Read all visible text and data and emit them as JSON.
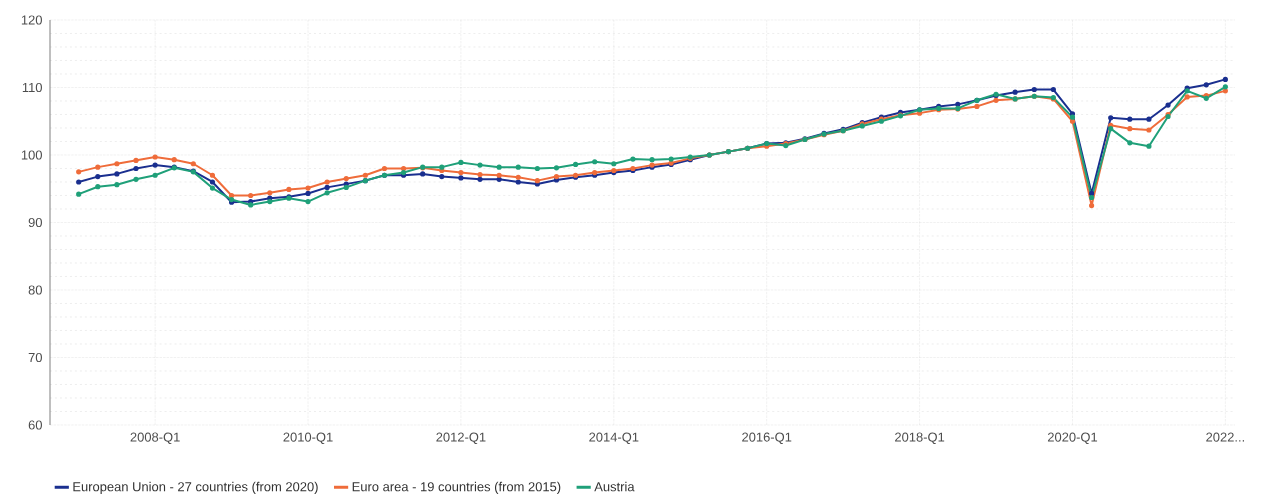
{
  "chart_data": {
    "type": "line",
    "categories": [
      null,
      null,
      null,
      null,
      "2008-Q1",
      null,
      null,
      null,
      null,
      null,
      null,
      null,
      "2010-Q1",
      null,
      null,
      null,
      null,
      null,
      null,
      null,
      "2012-Q1",
      null,
      null,
      null,
      null,
      null,
      null,
      null,
      "2014-Q1",
      null,
      null,
      null,
      null,
      null,
      null,
      null,
      "2016-Q1",
      null,
      null,
      null,
      null,
      null,
      null,
      null,
      "2018-Q1",
      null,
      null,
      null,
      null,
      null,
      null,
      null,
      "2020-Q1",
      null,
      null,
      null,
      null,
      null,
      null,
      null,
      "2022..."
    ],
    "series": [
      {
        "name": "European Union - 27 countries (from 2020)",
        "color": "#1a2f8f",
        "values": [
          96.0,
          96.8,
          97.2,
          98.0,
          98.5,
          98.2,
          97.6,
          96.0,
          93.0,
          93.1,
          93.6,
          93.8,
          94.3,
          95.2,
          95.7,
          96.2,
          97.0,
          97.0,
          97.2,
          96.8,
          96.6,
          96.4,
          96.4,
          96.0,
          95.7,
          96.3,
          96.7,
          97.0,
          97.4,
          97.7,
          98.2,
          98.6,
          99.3,
          100.0,
          100.5,
          101.0,
          101.7,
          101.8,
          102.4,
          103.2,
          103.8,
          104.8,
          105.6,
          106.3,
          106.7,
          107.2,
          107.5,
          108.1,
          108.8,
          109.3,
          109.7,
          109.7,
          106.1,
          94.3,
          105.5,
          105.3,
          105.3,
          107.4,
          109.9,
          110.4,
          111.2
        ]
      },
      {
        "name": "Euro area - 19 countries (from 2015)",
        "color": "#ef6c3a",
        "values": [
          97.5,
          98.2,
          98.7,
          99.2,
          99.7,
          99.3,
          98.7,
          97.0,
          94.0,
          94.0,
          94.4,
          94.9,
          95.1,
          96.0,
          96.5,
          97.0,
          98.0,
          98.0,
          98.1,
          97.7,
          97.4,
          97.1,
          97.0,
          96.7,
          96.2,
          96.8,
          97.0,
          97.4,
          97.7,
          98.0,
          98.5,
          98.8,
          99.5,
          100.0,
          100.5,
          101.0,
          101.3,
          101.7,
          102.3,
          103.0,
          103.6,
          104.6,
          105.3,
          105.9,
          106.2,
          106.7,
          106.8,
          107.2,
          108.1,
          108.3,
          108.7,
          108.3,
          105.0,
          92.5,
          104.4,
          103.9,
          103.7,
          106.0,
          108.6,
          108.8,
          109.5
        ]
      },
      {
        "name": "Austria",
        "color": "#1fa079",
        "values": [
          94.2,
          95.3,
          95.6,
          96.4,
          97.0,
          98.1,
          97.5,
          95.1,
          93.4,
          92.6,
          93.1,
          93.6,
          93.1,
          94.4,
          95.2,
          96.2,
          97.0,
          97.4,
          98.2,
          98.2,
          98.9,
          98.5,
          98.2,
          98.2,
          98.0,
          98.1,
          98.6,
          99.0,
          98.7,
          99.4,
          99.3,
          99.4,
          99.7,
          100.0,
          100.5,
          101.0,
          101.7,
          101.4,
          102.3,
          103.1,
          103.6,
          104.3,
          105.0,
          105.8,
          106.7,
          106.9,
          106.9,
          108.1,
          109.0,
          108.3,
          108.7,
          108.5,
          105.6,
          93.7,
          103.9,
          101.8,
          101.3,
          105.7,
          109.5,
          108.4,
          110.1
        ]
      }
    ],
    "ylim": [
      60,
      120
    ],
    "yticks": [
      60,
      70,
      80,
      90,
      100,
      110,
      120
    ],
    "grid": true,
    "legend": "bottom",
    "marker": "circle",
    "line_style": "solid"
  }
}
